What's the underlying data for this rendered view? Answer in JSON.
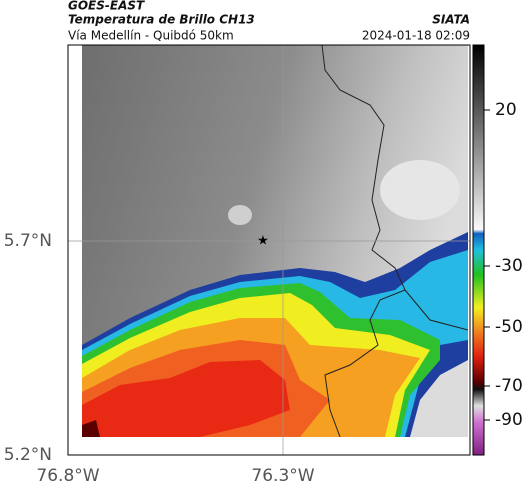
{
  "header": {
    "satellite": "GOES-EAST",
    "product": "Temperatura de Brillo CH13",
    "source": "SIATA",
    "region": "Vía Medellín - Quibdó 50km",
    "datetime": "2024-01-18 02:09"
  },
  "map": {
    "lat_labels": [
      "5.7°N",
      "5.2°N"
    ],
    "lon_labels": [
      "76.8°W",
      "76.3°W"
    ]
  },
  "colorbar": {
    "ticks": [
      20,
      -30,
      -50,
      -70,
      -90
    ]
  }
}
